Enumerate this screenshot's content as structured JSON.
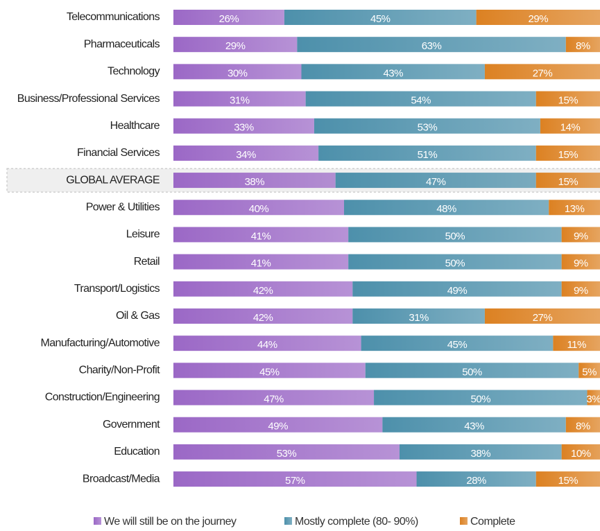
{
  "chart_data": {
    "type": "stacked_bar_horizontal",
    "categories": [
      "Telecommunications",
      "Pharmaceuticals",
      "Technology",
      "Business/Professional Services",
      "Healthcare",
      "Financial Services",
      "GLOBAL AVERAGE",
      "Power & Utilities",
      "Leisure",
      "Retail",
      "Transport/Logistics",
      "Oil & Gas",
      "Manufacturing/Automotive",
      "Charity/Non-Profit",
      "Construction/Engineering",
      "Government",
      "Education",
      "Broadcast/Media"
    ],
    "series": [
      {
        "name": "We will still be on the journey",
        "color": "#9b68c6",
        "values": [
          26,
          29,
          30,
          31,
          33,
          34,
          38,
          40,
          41,
          41,
          42,
          42,
          44,
          45,
          47,
          49,
          53,
          57
        ],
        "value_labels": [
          "26%",
          "29%",
          "30%",
          "31%",
          "33%",
          "34%",
          "38%",
          "40%",
          "41%",
          "41%",
          "42%",
          "42%",
          "44%",
          "45%",
          "47%",
          "49%",
          "53%",
          "57%"
        ]
      },
      {
        "name": "Mostly complete (80- 90%)",
        "color": "#4d90ab",
        "values": [
          45,
          63,
          43,
          54,
          53,
          51,
          47,
          48,
          50,
          50,
          49,
          31,
          45,
          50,
          50,
          43,
          38,
          28
        ],
        "value_labels": [
          "45%",
          "63%",
          "43%",
          "54%",
          "53%",
          "51%",
          "47%",
          "48%",
          "50%",
          "50%",
          "49%",
          "31%",
          "45%",
          "50%",
          "50%",
          "43%",
          "38%",
          "28%"
        ]
      },
      {
        "name": "Complete",
        "color": "#dc8122",
        "values": [
          29,
          8,
          27,
          15,
          14,
          15,
          15,
          13,
          9,
          9,
          9,
          27,
          11,
          5,
          3,
          8,
          10,
          15
        ],
        "value_labels": [
          "29%",
          "8%",
          "27%",
          "15%",
          "14%",
          "15%",
          "15%",
          "13%",
          "9%",
          "9%",
          "9%",
          "27%",
          "11%",
          "5%",
          "3%",
          "8%",
          "10%",
          "15%"
        ]
      }
    ],
    "xlim": [
      0,
      100
    ]
  }
}
